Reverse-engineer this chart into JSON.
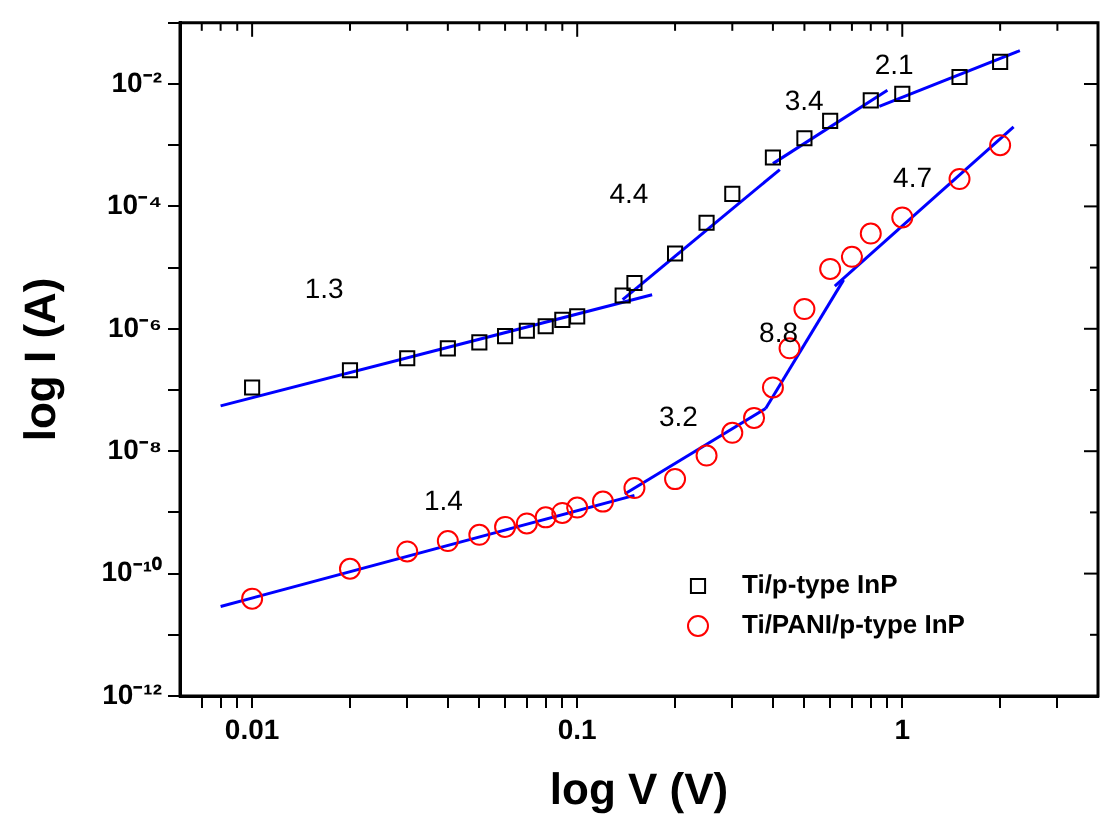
{
  "chart_data": {
    "type": "scatter",
    "xlabel": "log V (V)",
    "ylabel": "log I (A)",
    "log": "xy",
    "grid": false,
    "legend": "bottom right",
    "xlim": [
      0.006,
      4
    ],
    "ylim": [
      1e-12,
      0.1
    ],
    "xticks": [
      {
        "value": 0.007,
        "label": null
      },
      {
        "value": 0.008,
        "label": null
      },
      {
        "value": 0.009,
        "label": null
      },
      {
        "value": 0.01,
        "label": "0.01"
      },
      {
        "value": 0.02,
        "label": null
      },
      {
        "value": 0.03,
        "label": null
      },
      {
        "value": 0.04,
        "label": null
      },
      {
        "value": 0.05,
        "label": null
      },
      {
        "value": 0.06,
        "label": null
      },
      {
        "value": 0.07,
        "label": null
      },
      {
        "value": 0.08,
        "label": null
      },
      {
        "value": 0.09,
        "label": null
      },
      {
        "value": 0.1,
        "label": "0.1"
      },
      {
        "value": 0.2,
        "label": null
      },
      {
        "value": 0.3,
        "label": null
      },
      {
        "value": 0.4,
        "label": null
      },
      {
        "value": 0.5,
        "label": null
      },
      {
        "value": 0.6,
        "label": null
      },
      {
        "value": 0.7,
        "label": null
      },
      {
        "value": 0.8,
        "label": null
      },
      {
        "value": 0.9,
        "label": null
      },
      {
        "value": 1,
        "label": "1"
      },
      {
        "value": 2,
        "label": null
      },
      {
        "value": 3,
        "label": null
      }
    ],
    "yticks": [
      {
        "value": 1e-12,
        "label": "10⁻¹²"
      },
      {
        "value": 1e-11,
        "label": null
      },
      {
        "value": 1e-10,
        "label": "10⁻¹⁰"
      },
      {
        "value": 1e-09,
        "label": null
      },
      {
        "value": 1e-08,
        "label": "10⁻⁸"
      },
      {
        "value": 1e-07,
        "label": null
      },
      {
        "value": 1e-06,
        "label": "10⁻⁶"
      },
      {
        "value": 1e-05,
        "label": null
      },
      {
        "value": 0.0001,
        "label": "10⁻⁴"
      },
      {
        "value": 0.001,
        "label": null
      },
      {
        "value": 0.01,
        "label": "10⁻²"
      },
      {
        "value": 0.1,
        "label": null
      }
    ],
    "series": [
      {
        "name": "Ti/p-type InP",
        "marker": "square",
        "color": "#000000",
        "x": [
          0.01,
          0.02,
          0.03,
          0.04,
          0.05,
          0.06,
          0.07,
          0.08,
          0.09,
          0.1,
          0.138,
          0.15,
          0.2,
          0.25,
          0.3,
          0.4,
          0.5,
          0.6,
          0.8,
          1.0,
          1.5,
          2.0
        ],
        "values": [
          1.1e-07,
          2.1e-07,
          3.3e-07,
          4.8e-07,
          6e-07,
          7.6e-07,
          9.3e-07,
          1.1e-06,
          1.4e-06,
          1.6e-06,
          3.5e-06,
          5.6e-06,
          1.7e-05,
          5.4e-05,
          0.00016,
          0.00063,
          0.0013,
          0.0025,
          0.0054,
          0.0069,
          0.013,
          0.023
        ]
      },
      {
        "name": "Ti/PANI/p-type InP",
        "marker": "circle",
        "color": "#ff0000",
        "x": [
          0.01,
          0.02,
          0.03,
          0.04,
          0.05,
          0.06,
          0.07,
          0.08,
          0.09,
          0.1,
          0.12,
          0.15,
          0.2,
          0.25,
          0.3,
          0.35,
          0.4,
          0.45,
          0.5,
          0.6,
          0.7,
          0.8,
          1.0,
          1.5,
          2.0
        ],
        "values": [
          3.9e-11,
          1.2e-10,
          2.3e-10,
          3.4e-10,
          4.3e-10,
          5.8e-10,
          6.6e-10,
          8.3e-10,
          9.8e-10,
          1.2e-09,
          1.5e-09,
          2.5e-09,
          3.5e-09,
          8.5e-09,
          2e-08,
          3.5e-08,
          1.1e-07,
          4.8e-07,
          2.1e-06,
          9.5e-06,
          1.5e-05,
          3.6e-05,
          6.6e-05,
          0.00028,
          0.001
        ]
      },
      {
        "type": "line",
        "marker": "none",
        "color": "#0000ff",
        "x": [
          0.008,
          0.17
        ],
        "values": [
          5.5e-08,
          3.6e-06
        ]
      },
      {
        "type": "line",
        "marker": "none",
        "color": "#0000ff",
        "x": [
          0.138,
          0.42
        ],
        "values": [
          3e-06,
          0.0004
        ]
      },
      {
        "type": "line",
        "marker": "none",
        "color": "#0000ff",
        "x": [
          0.4,
          0.9
        ],
        "values": [
          0.0005,
          0.0079
        ]
      },
      {
        "type": "line",
        "marker": "none",
        "color": "#0000ff",
        "x": [
          0.85,
          2.3
        ],
        "values": [
          0.0043,
          0.035
        ]
      },
      {
        "type": "line",
        "marker": "none",
        "color": "#0000ff",
        "x": [
          0.008,
          0.15
        ],
        "values": [
          2.9e-11,
          1.9e-09
        ]
      },
      {
        "type": "line",
        "marker": "none",
        "color": "#0000ff",
        "x": [
          0.14,
          0.38
        ],
        "values": [
          2e-09,
          5e-08
        ]
      },
      {
        "type": "line",
        "marker": "none",
        "color": "#0000ff",
        "x": [
          0.38,
          0.66
        ],
        "values": [
          5e-08,
          6.3e-06
        ]
      },
      {
        "type": "line",
        "marker": "none",
        "color": "#0000ff",
        "x": [
          0.62,
          2.2
        ],
        "values": [
          5e-06,
          0.002
        ]
      }
    ],
    "annotations": [
      "1.3",
      "4.4",
      "3.4",
      "2.1",
      "4.7",
      "8.8",
      "3.2",
      "1.4"
    ]
  }
}
